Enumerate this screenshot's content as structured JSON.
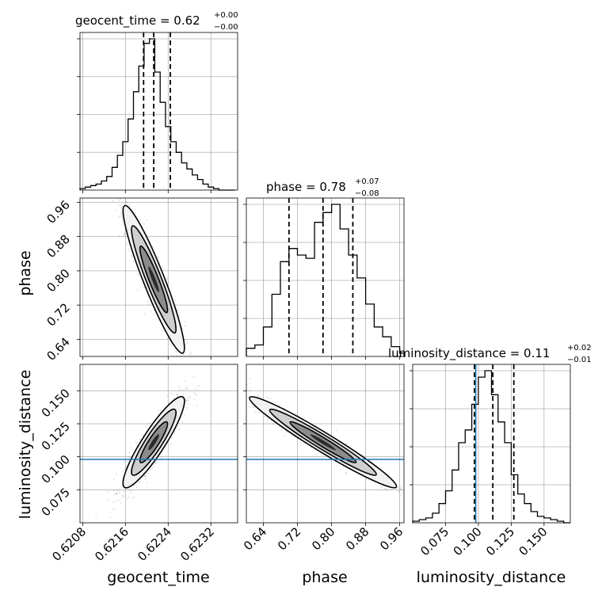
{
  "chart_data": {
    "type": "corner",
    "parameters": [
      {
        "name": "geocent_time",
        "title_main": "geocent_time = 0.62",
        "title_plus": "+0.00",
        "title_minus": "−0.00",
        "range": [
          0.62075,
          0.6237
        ],
        "ticks": [
          "0.6208",
          "0.6216",
          "0.6224",
          "0.6232"
        ],
        "tick_values": [
          0.6208,
          0.6216,
          0.6224,
          0.6232
        ],
        "quantiles": [
          0.62194,
          0.62213,
          0.62244
        ],
        "hist_edges": [
          0.62075,
          0.62085,
          0.62095,
          0.62105,
          0.62115,
          0.62125,
          0.62135,
          0.62145,
          0.62155,
          0.62165,
          0.62175,
          0.62185,
          0.62195,
          0.62205,
          0.62215,
          0.62225,
          0.62235,
          0.62245,
          0.62255,
          0.62265,
          0.62275,
          0.62285,
          0.62295,
          0.62305,
          0.62315,
          0.62325,
          0.62335,
          0.62345,
          0.62355,
          0.62365
        ],
        "hist_counts": [
          1,
          2,
          3,
          4,
          6,
          9,
          15,
          23,
          32,
          47,
          65,
          82,
          97,
          100,
          78,
          58,
          42,
          32,
          25,
          18,
          14,
          10,
          7,
          4,
          2,
          1,
          0,
          0,
          0
        ]
      },
      {
        "name": "phase",
        "title_main": "phase = 0.78",
        "title_plus": "+0.07",
        "title_minus": "−0.08",
        "range": [
          0.6,
          0.97
        ],
        "ticks": [
          "0.64",
          "0.72",
          "0.80",
          "0.88",
          "0.96"
        ],
        "tick_values": [
          0.64,
          0.72,
          0.8,
          0.88,
          0.96
        ],
        "quantiles": [
          0.7,
          0.78,
          0.85
        ],
        "hist_edges": [
          0.6,
          0.62,
          0.64,
          0.66,
          0.68,
          0.7,
          0.72,
          0.74,
          0.76,
          0.78,
          0.8,
          0.82,
          0.84,
          0.86,
          0.88,
          0.9,
          0.92,
          0.94,
          0.96,
          0.97
        ],
        "hist_counts": [
          5,
          7,
          18,
          38,
          58,
          66,
          62,
          60,
          82,
          88,
          93,
          78,
          62,
          48,
          32,
          18,
          12,
          6,
          2
        ]
      },
      {
        "name": "luminosity_distance",
        "title_main": "luminosity_distance = 0.11",
        "title_plus": "+0.02",
        "title_minus": "−0.01",
        "range": [
          0.05,
          0.17
        ],
        "ticks": [
          "0.075",
          "0.100",
          "0.125",
          "0.150"
        ],
        "tick_values": [
          0.075,
          0.1,
          0.125,
          0.15
        ],
        "quantiles": [
          0.097,
          0.111,
          0.127
        ],
        "truth": 0.098,
        "hist_edges": [
          0.05,
          0.055,
          0.06,
          0.065,
          0.07,
          0.075,
          0.08,
          0.085,
          0.09,
          0.095,
          0.1,
          0.105,
          0.11,
          0.115,
          0.12,
          0.125,
          0.13,
          0.135,
          0.14,
          0.145,
          0.15,
          0.155,
          0.16,
          0.165,
          0.17
        ],
        "hist_counts": [
          1,
          2,
          3,
          6,
          12,
          20,
          33,
          50,
          58,
          74,
          91,
          95,
          80,
          63,
          50,
          30,
          18,
          12,
          7,
          4,
          3,
          2,
          1,
          0
        ]
      }
    ],
    "truth_line_color": "#1f77b4",
    "grid": true
  }
}
